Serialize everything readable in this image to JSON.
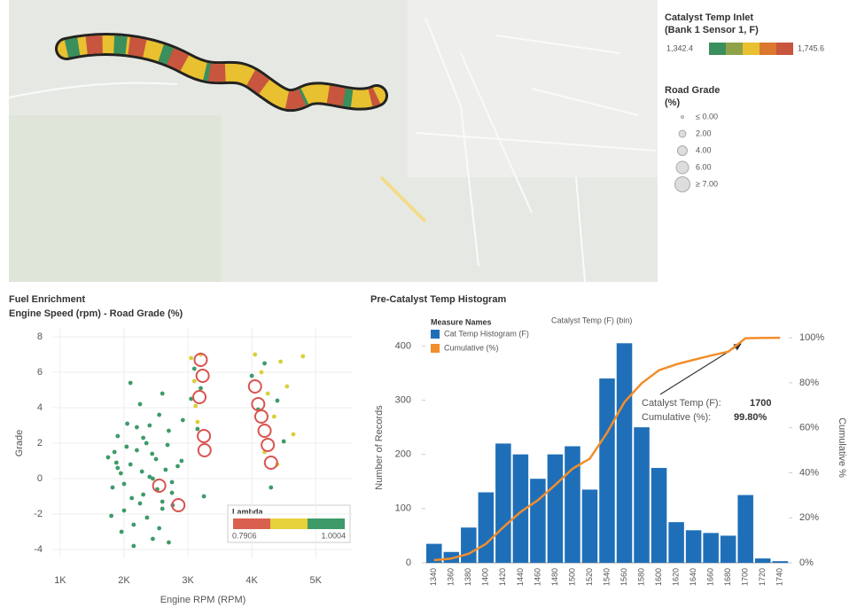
{
  "map": {
    "legend_color": {
      "title": [
        "Catalyst Temp Inlet",
        "(Bank 1 Sensor 1, F)"
      ],
      "min_label": "1,342.4",
      "max_label": "1,745.6",
      "colors": [
        "#3a8f5c",
        "#8fa24a",
        "#e8c030",
        "#d9782e",
        "#c8553d"
      ]
    },
    "legend_size": {
      "title": [
        "Road Grade",
        "(%)"
      ],
      "labels": [
        "≤ 0.00",
        "2.00",
        "4.00",
        "6.00",
        "≥ 7.00"
      ]
    }
  },
  "chart_data": [
    {
      "type": "scatter",
      "title": "Fuel Enrichment",
      "subtitle": "Engine Speed (rpm) - Road Grade (%)",
      "x_label": "Engine RPM (RPM)",
      "y_label": "Grade",
      "xlim": [
        890,
        5580
      ],
      "ylim": [
        -4.5,
        8.5
      ],
      "xticks": [
        {
          "value": 1000,
          "label": "1K"
        },
        {
          "value": 2000,
          "label": "2K"
        },
        {
          "value": 3000,
          "label": "3K"
        },
        {
          "value": 4000,
          "label": "4K"
        },
        {
          "value": 5000,
          "label": "5K"
        }
      ],
      "yticks": [
        -4,
        -2,
        0,
        2,
        4,
        6,
        8
      ],
      "grid": true,
      "series": [
        {
          "color": "#3f9a6a",
          "marker": "dot",
          "x": [
            1750,
            1820,
            1900,
            1950,
            2000,
            2050,
            2100,
            2150,
            2200,
            2250,
            2300,
            2350,
            2400,
            2450,
            2500,
            2550,
            2600,
            2650,
            2700,
            2750,
            1800,
            1880,
            1960,
            2040,
            2120,
            2200,
            2280,
            2360,
            2440,
            2520,
            2600,
            2680,
            2760,
            2840,
            2920,
            1850,
            2000,
            2150,
            2300,
            2450,
            2600,
            2750,
            2900,
            3050,
            3100,
            3150,
            3200,
            3250,
            4000,
            4100,
            4200,
            4300,
            4400,
            4500,
            2100,
            2250,
            2400,
            2550,
            1900,
            2700
          ],
          "values": [
            1.2,
            -0.5,
            2.4,
            0.3,
            -1.8,
            3.1,
            0.8,
            -2.6,
            1.6,
            4.2,
            -0.9,
            2.0,
            0.1,
            -3.4,
            1.1,
            3.6,
            -1.3,
            0.5,
            2.7,
            -0.2,
            -2.1,
            0.9,
            -3.0,
            1.8,
            -1.1,
            2.9,
            0.4,
            -2.2,
            1.4,
            -0.6,
            4.8,
            1.9,
            -1.5,
            0.7,
            3.3,
            1.5,
            -0.3,
            -3.8,
            2.3,
            0.0,
            -1.7,
            -0.8,
            1.0,
            4.5,
            6.2,
            2.8,
            5.1,
            -1.0,
            5.8,
            3.9,
            6.5,
            -0.5,
            4.4,
            2.1,
            5.4,
            -1.4,
            3.0,
            -2.8,
            0.6,
            -3.6
          ]
        },
        {
          "color": "#d9cf3a",
          "marker": "dot",
          "x": [
            3050,
            3100,
            3150,
            3200,
            4050,
            4150,
            4250,
            4350,
            4450,
            4550,
            4650,
            4800,
            3120,
            4200,
            4400
          ],
          "values": [
            6.8,
            5.5,
            3.2,
            7.0,
            7.0,
            6.0,
            4.8,
            3.5,
            6.6,
            5.2,
            2.5,
            6.9,
            4.1,
            1.5,
            0.8
          ]
        },
        {
          "color": "#d9534f",
          "marker": "ring",
          "x": [
            3200,
            3230,
            3180,
            3250,
            3260,
            2550,
            2850,
            4050,
            4100,
            4150,
            4200,
            4250,
            4300
          ],
          "values": [
            6.7,
            5.8,
            4.6,
            2.4,
            1.6,
            -0.4,
            -1.5,
            5.2,
            4.2,
            3.5,
            2.7,
            1.9,
            0.9
          ]
        }
      ],
      "color_legend": {
        "title": "Lambda",
        "min_label": "0.7906",
        "max_label": "1.0004",
        "colors": [
          "#d9604f",
          "#e6d23a",
          "#3f9a6a"
        ]
      }
    },
    {
      "type": "bar",
      "title": "Pre-Catalyst Temp Histogram",
      "filter_label": "Catalyst Temp (F) (bin)",
      "legend_title": "Measure Names",
      "y_label": "Number of Records",
      "y2_label": "Cumulative %",
      "categories": [
        "1340",
        "1360",
        "1380",
        "1400",
        "1420",
        "1440",
        "1460",
        "1480",
        "1500",
        "1520",
        "1540",
        "1560",
        "1580",
        "1600",
        "1620",
        "1640",
        "1660",
        "1680",
        "1700",
        "1720",
        "1740"
      ],
      "series": [
        {
          "name": "Cat Temp Histogram (F)",
          "color": "#1f6fb8",
          "values": [
            35,
            20,
            65,
            130,
            220,
            200,
            155,
            200,
            215,
            135,
            340,
            405,
            250,
            175,
            75,
            60,
            55,
            50,
            125,
            8,
            3
          ]
        },
        {
          "name": "Cumulative (%)",
          "color": "#f28e2b",
          "type": "line",
          "axis": "y2",
          "values": [
            1.2,
            1.9,
            4.0,
            8.4,
            15.8,
            22.6,
            27.8,
            34.6,
            41.8,
            46.3,
            57.8,
            71.4,
            79.8,
            85.6,
            88.2,
            90.2,
            92.1,
            93.8,
            99.8,
            99.95,
            100
          ]
        }
      ],
      "ylim": [
        0,
        430
      ],
      "yticks": [
        0,
        100,
        200,
        300,
        400
      ],
      "y2lim": [
        0,
        103.6
      ],
      "y2ticks": [
        {
          "value": 0,
          "label": "0%"
        },
        {
          "value": 20,
          "label": "20%"
        },
        {
          "value": 40,
          "label": "40%"
        },
        {
          "value": 60,
          "label": "60%"
        },
        {
          "value": 80,
          "label": "80%"
        },
        {
          "value": 100,
          "label": "100%"
        }
      ],
      "annotation": {
        "lines": [
          {
            "label": "Catalyst Temp (F):",
            "value": "1700"
          },
          {
            "label": "Cumulative (%):",
            "value": "99.80%"
          }
        ]
      }
    }
  ]
}
